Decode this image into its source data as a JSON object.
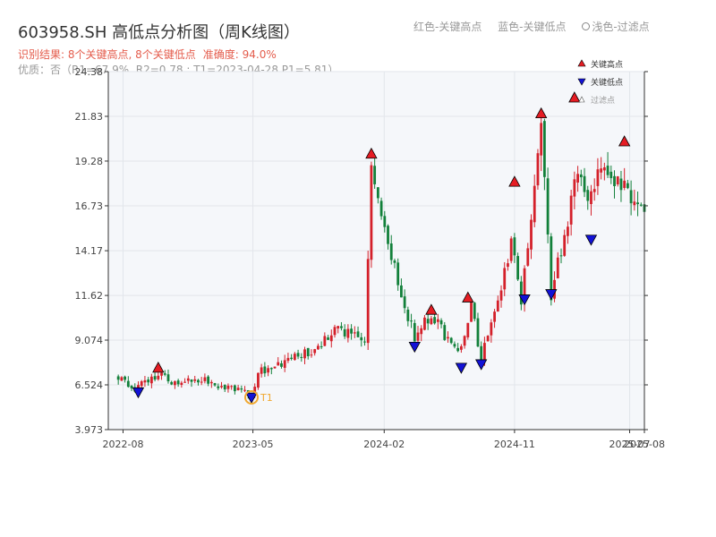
{
  "header": {
    "title": "603958.SH 高低点分析图（周K线图）",
    "subtitle": "识别结果: 8个关键高点, 8个关键低点",
    "accuracy": "准确度: 94.0%",
    "info": "优质：否（R1=67.9%, R2=0.78 ; T1=2023-04-28 P1=5.81）"
  },
  "top_legend": {
    "red": "红色-关键高点",
    "blue": "蓝色-关键低点",
    "light": "浅色-过滤点"
  },
  "legend": {
    "high": "关键高点",
    "low": "关键低点",
    "filtered": "过滤点"
  },
  "colors": {
    "up": "#d4202a",
    "down": "#12803a",
    "high_marker": "#e51c23",
    "low_marker": "#1212d6",
    "t1_marker": "#f0a830",
    "plot_bg": "#f5f7fa",
    "grid": "#e2e6eb"
  },
  "chart_data": {
    "type": "candlestick",
    "x_ticks": [
      "2022-08",
      "2023-05",
      "2024-02",
      "2024-11",
      "2025-07",
      "2025-08"
    ],
    "y_ticks": [
      "3.973",
      "6.524",
      "9.074",
      "11.62",
      "14.17",
      "16.73",
      "19.28",
      "21.83",
      "24.38"
    ],
    "ylim": [
      3.973,
      24.38
    ],
    "t1_label": "T1",
    "anchors": [
      [
        "2022-07-22",
        7.0
      ],
      [
        "2022-08-26",
        6.3
      ],
      [
        "2022-10-14",
        7.2
      ],
      [
        "2022-11-11",
        6.6
      ],
      [
        "2023-01-06",
        6.9
      ],
      [
        "2023-04-28",
        5.9
      ],
      [
        "2023-05-12",
        7.2
      ],
      [
        "2023-06-30",
        7.7
      ],
      [
        "2023-09-08",
        8.5
      ],
      [
        "2023-10-20",
        9.8
      ],
      [
        "2023-12-22",
        9.1
      ],
      [
        "2024-01-05",
        19.2
      ],
      [
        "2024-03-01",
        12.3
      ],
      [
        "2024-04-05",
        9.2
      ],
      [
        "2024-05-10",
        10.6
      ],
      [
        "2024-07-05",
        8.2
      ],
      [
        "2024-08-02",
        11.0
      ],
      [
        "2024-08-23",
        8.0
      ],
      [
        "2024-10-25",
        14.5
      ],
      [
        "2024-11-15",
        11.4
      ],
      [
        "2024-12-27",
        21.3
      ],
      [
        "2025-01-17",
        11.6
      ],
      [
        "2025-02-21",
        16.0
      ],
      [
        "2025-03-14",
        19.0
      ],
      [
        "2025-04-04",
        17.6
      ],
      [
        "2025-05-09",
        19.3
      ],
      [
        "2025-07-04",
        17.0
      ],
      [
        "2025-08-01",
        16.9
      ]
    ],
    "key_highs": [
      {
        "date": "2022-10-14",
        "price": 7.5
      },
      {
        "date": "2024-01-05",
        "price": 19.7
      },
      {
        "date": "2024-05-10",
        "price": 10.8
      },
      {
        "date": "2024-07-26",
        "price": 11.5
      },
      {
        "date": "2024-11-01",
        "price": 18.1
      },
      {
        "date": "2024-12-27",
        "price": 22.0
      },
      {
        "date": "2025-03-07",
        "price": 22.9
      },
      {
        "date": "2025-06-20",
        "price": 20.4
      }
    ],
    "key_lows": [
      {
        "date": "2022-09-02",
        "price": 6.1
      },
      {
        "date": "2023-04-28",
        "price": 5.8
      },
      {
        "date": "2024-04-05",
        "price": 8.7
      },
      {
        "date": "2024-07-12",
        "price": 7.5
      },
      {
        "date": "2024-08-23",
        "price": 7.7
      },
      {
        "date": "2024-11-22",
        "price": 11.4
      },
      {
        "date": "2025-01-17",
        "price": 11.7
      },
      {
        "date": "2025-04-11",
        "price": 14.8
      }
    ],
    "t1": {
      "date": "2023-04-28",
      "price": 5.81
    }
  }
}
